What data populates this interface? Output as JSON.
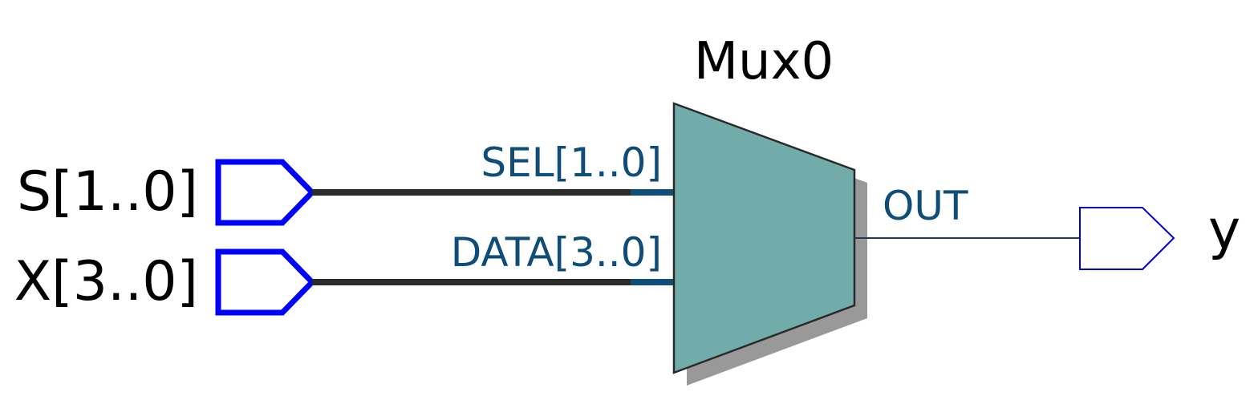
{
  "colors": {
    "background": "#ffffff",
    "input_port_stroke": "#0000ff",
    "output_port_stroke": "#0000cc",
    "bus_wire": "#2b2b2b",
    "pin_wire": "#0f4c78",
    "pin_label": "#0f4c78",
    "mux_fill": "#71acab",
    "mux_stroke": "#2a2a2a",
    "mux_shadow": "#999999",
    "output_wire": "#1f3a5a"
  },
  "inputs": [
    {
      "name": "S[1..0]",
      "icon": "input-port-icon",
      "bus": true
    },
    {
      "name": "X[3..0]",
      "icon": "input-port-icon",
      "bus": true
    }
  ],
  "outputs": [
    {
      "name": "y",
      "icon": "output-port-icon",
      "bus": false
    }
  ],
  "mux": {
    "instance_name": "Mux0",
    "pins": {
      "sel": "SEL[1..0]",
      "data": "DATA[3..0]",
      "out": "OUT"
    }
  }
}
